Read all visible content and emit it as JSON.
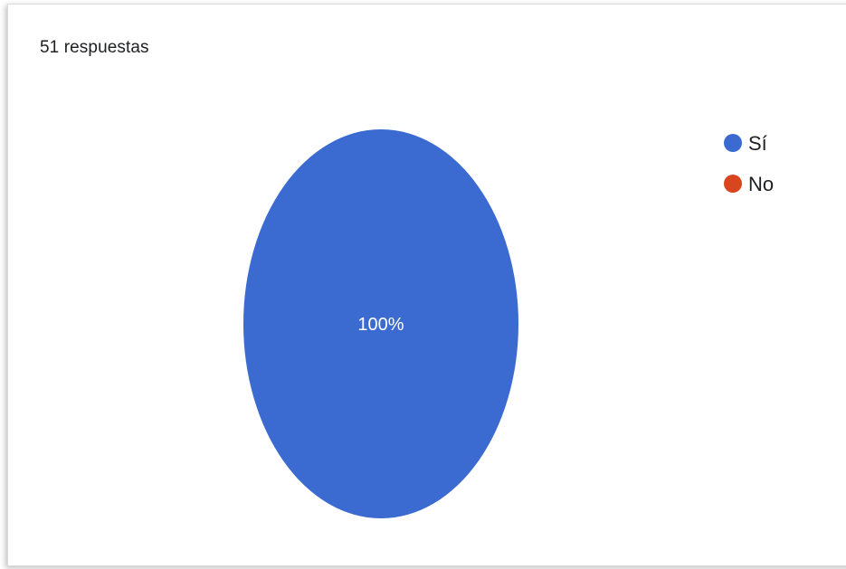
{
  "header": {
    "responses_label": "51 respuestas"
  },
  "chart_data": {
    "type": "pie",
    "categories": [
      "Sí",
      "No"
    ],
    "values": [
      100,
      0
    ],
    "unit": "%",
    "slice_labels": [
      "100%",
      ""
    ],
    "legend": {
      "position": "top-right",
      "entries": [
        {
          "label": "Sí",
          "color": "#3b6bd0"
        },
        {
          "label": "No",
          "color": "#d9451f"
        }
      ]
    }
  }
}
